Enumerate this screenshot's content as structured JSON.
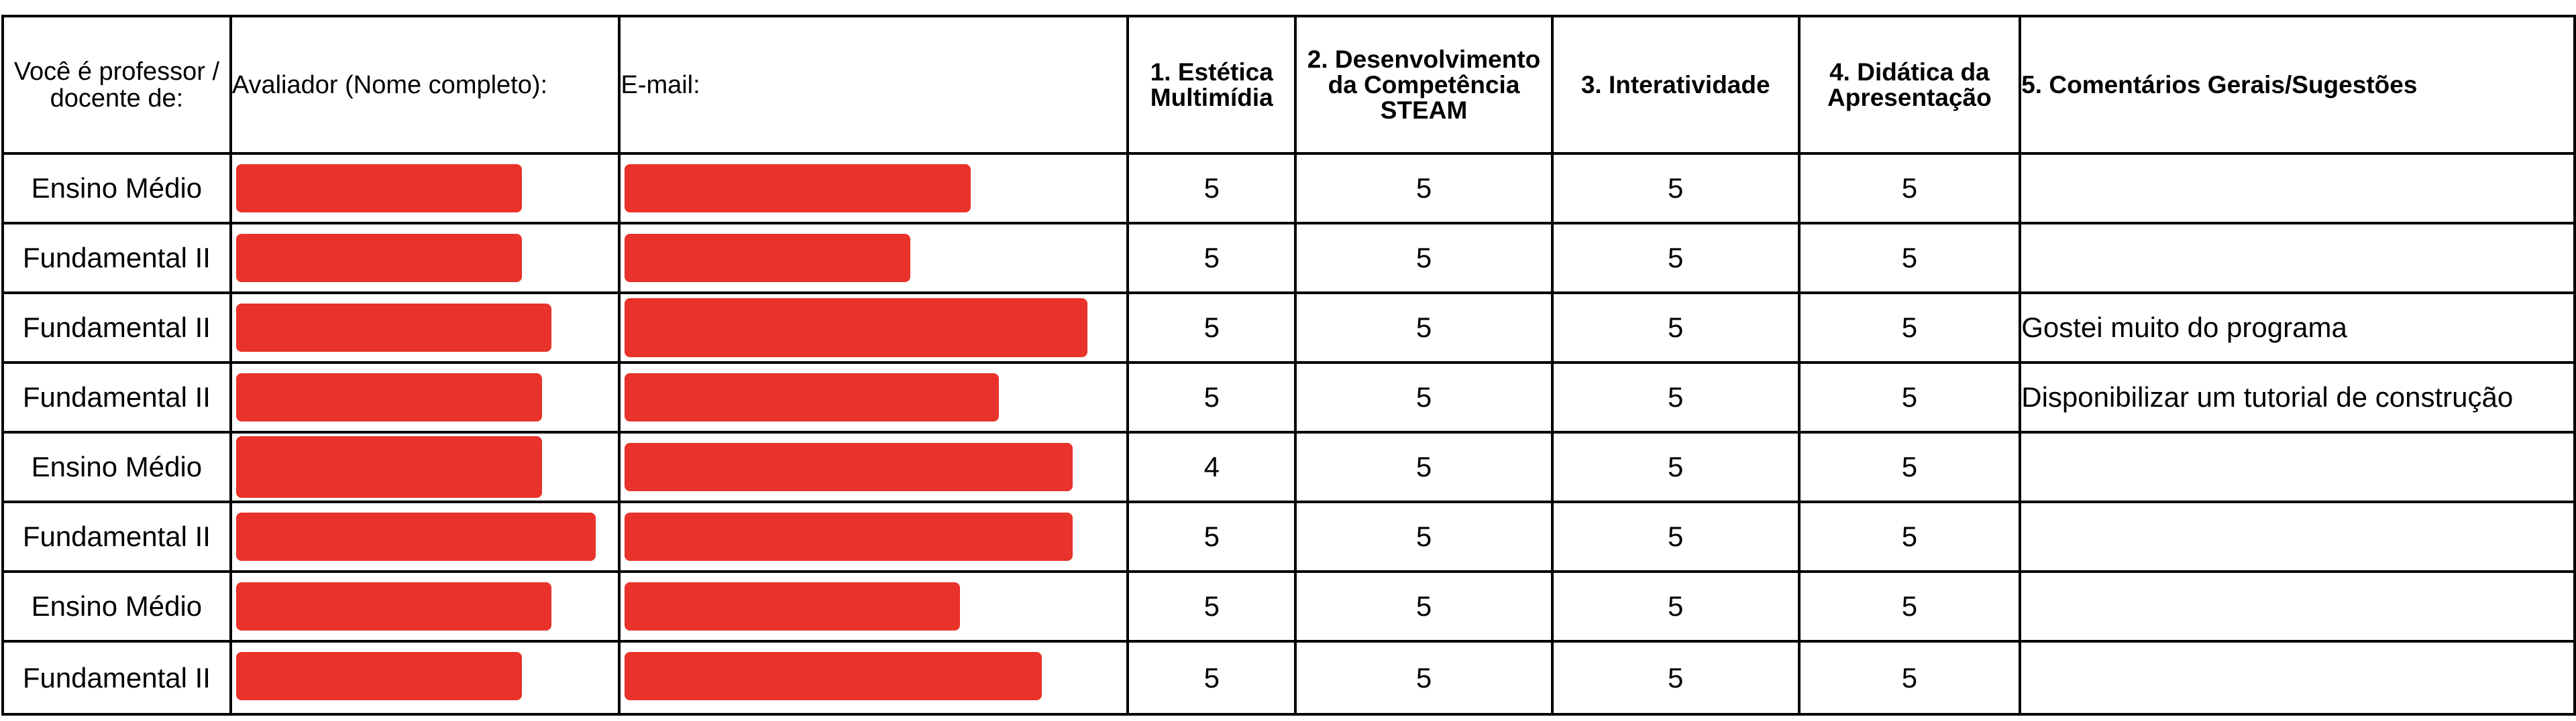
{
  "colors": {
    "redaction": "#e8322a",
    "grid_line": "#000000"
  },
  "headers": {
    "teacher_level": "Você é professor / docente de:",
    "evaluator": "Avaliador (Nome completo):",
    "email": "E-mail:",
    "aesthetic": "1. Estética Multimídia",
    "steam": "2. Desenvolvimento da Competência STEAM",
    "interactivity": "3. Interatividade",
    "didactics": "4. Didática da Apresentação",
    "comments": "5. Comentários Gerais/Sugestões"
  },
  "rows": [
    {
      "level": "Ensino Médio",
      "aesthetic": "5",
      "steam": "5",
      "interactivity": "5",
      "didactics": "5",
      "comment": ""
    },
    {
      "level": "Fundamental II",
      "aesthetic": "5",
      "steam": "5",
      "interactivity": "5",
      "didactics": "5",
      "comment": ""
    },
    {
      "level": "Fundamental II",
      "aesthetic": "5",
      "steam": "5",
      "interactivity": "5",
      "didactics": "5",
      "comment": "Gostei muito do programa"
    },
    {
      "level": "Fundamental II",
      "aesthetic": "5",
      "steam": "5",
      "interactivity": "5",
      "didactics": "5",
      "comment": "Disponibilizar um tutorial de construção"
    },
    {
      "level": "Ensino Médio",
      "aesthetic": "4",
      "steam": "5",
      "interactivity": "5",
      "didactics": "5",
      "comment": ""
    },
    {
      "level": "Fundamental II",
      "aesthetic": "5",
      "steam": "5",
      "interactivity": "5",
      "didactics": "5",
      "comment": ""
    },
    {
      "level": "Ensino Médio",
      "aesthetic": "5",
      "steam": "5",
      "interactivity": "5",
      "didactics": "5",
      "comment": ""
    },
    {
      "level": "Fundamental II",
      "aesthetic": "5",
      "steam": "5",
      "interactivity": "5",
      "didactics": "5",
      "comment": ""
    }
  ]
}
